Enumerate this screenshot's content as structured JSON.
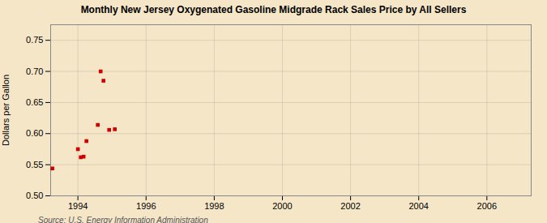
{
  "chart_data": {
    "type": "scatter",
    "title": "Monthly New Jersey Oxygenated Gasoline Midgrade Rack Sales Price by All Sellers",
    "ylabel": "Dollars per Gallon",
    "annotations": [
      "Source: U.S. Energy Information Administration"
    ],
    "x": [
      1993.25,
      1994.0,
      1994.083,
      1994.167,
      1994.25,
      1994.583,
      1994.667,
      1994.75,
      1994.917,
      1995.083
    ],
    "values": [
      0.544,
      0.575,
      0.562,
      0.563,
      0.588,
      0.614,
      0.7,
      0.685,
      0.606,
      0.607
    ],
    "color": "#cc0000",
    "marker": "square",
    "xlim": [
      1993.2,
      2007.3
    ],
    "ylim": [
      0.5,
      0.775
    ],
    "xticks": [
      1994,
      1996,
      1998,
      2000,
      2002,
      2004,
      2006
    ],
    "yticks": [
      {
        "value": 0.5,
        "label": "0.50"
      },
      0.55,
      {
        "value": 0.6,
        "label": "0.60"
      },
      0.65,
      {
        "value": 0.7,
        "label": "0.70"
      },
      0.75
    ],
    "grid": true
  }
}
